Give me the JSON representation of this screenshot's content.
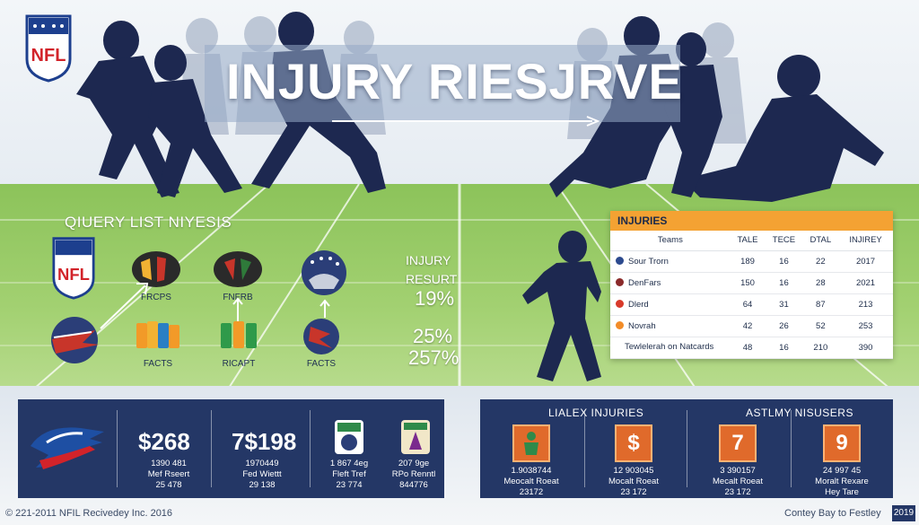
{
  "header": {
    "title": "INJURY RIESJRVE",
    "logo": "NFL"
  },
  "query": {
    "title": "QIUERY LIST NIYESIS",
    "logo_labels": [
      "FRCPS",
      "FNFRB",
      "FACTS",
      "RICAPT",
      "FACTS"
    ]
  },
  "injury_stats": {
    "label_line1": "INJURY",
    "label_line2": "RESURT",
    "values": [
      "19%",
      "25%",
      "257%"
    ]
  },
  "table": {
    "title": "INJURIES",
    "columns": [
      "Teams",
      "TALE",
      "TECE",
      "DTAL",
      "INJIREY"
    ],
    "rows": [
      {
        "team": "Sour Trorn",
        "c1": "189",
        "c2": "16",
        "c3": "22",
        "c4": "2017",
        "icon_color": "#2c4a8e"
      },
      {
        "team": "DenFars",
        "c1": "150",
        "c2": "16",
        "c3": "28",
        "c4": "2021",
        "icon_color": "#8a2a2a"
      },
      {
        "team": "Dlerd",
        "c1": "64",
        "c2": "31",
        "c3": "87",
        "c4": "213",
        "icon_color": "#d83a2a"
      },
      {
        "team": "Novrah",
        "c1": "42",
        "c2": "26",
        "c3": "52",
        "c4": "253",
        "icon_color": "#f28c28"
      },
      {
        "team": "Tewlelerah on Natcards",
        "c1": "48",
        "c2": "16",
        "c3": "210",
        "c4": "390",
        "icon_color": ""
      }
    ]
  },
  "left_panel": {
    "stats": [
      {
        "value": "$268",
        "line1": "1390 481",
        "line2": "Mef Rseert",
        "line3": "25 478"
      },
      {
        "value": "7$198",
        "line1": "1970449",
        "line2": "Fed Wiettt",
        "line3": "29 138"
      },
      {
        "line1": "1 867 4eg",
        "line2": "Fleft Tref",
        "line3": "23 774"
      },
      {
        "line1": "207 9ge",
        "line2": "RPo Renntl",
        "line3": "844776"
      }
    ]
  },
  "right_panel": {
    "left_title": "LIALEX INJURIES",
    "right_title": "ASTLMY NISUSERS",
    "cards": [
      {
        "badge": "",
        "line1": "1.9038744",
        "line2": "Meocalt Roeat",
        "line3": "23172"
      },
      {
        "badge": "$",
        "line1": "12 903045",
        "line2": "Mocalt Roeat",
        "line3": "23 172"
      },
      {
        "badge": "7",
        "line1": "3 390157",
        "line2": "Mecalt Roeat",
        "line3": "23 172"
      },
      {
        "badge": "9",
        "line1": "24 997 45",
        "line2": "Moralt Rexare",
        "line3": "Hey Tare"
      }
    ]
  },
  "footer": {
    "left": "© 221-2011 NFIL Recivedey Inc. 2016",
    "right": "Contey Bay to Festley",
    "year": "2019"
  },
  "colors": {
    "navy": "#243766",
    "orange": "#f4a233",
    "badge": "#e06a2b",
    "field": "#a3d172"
  }
}
